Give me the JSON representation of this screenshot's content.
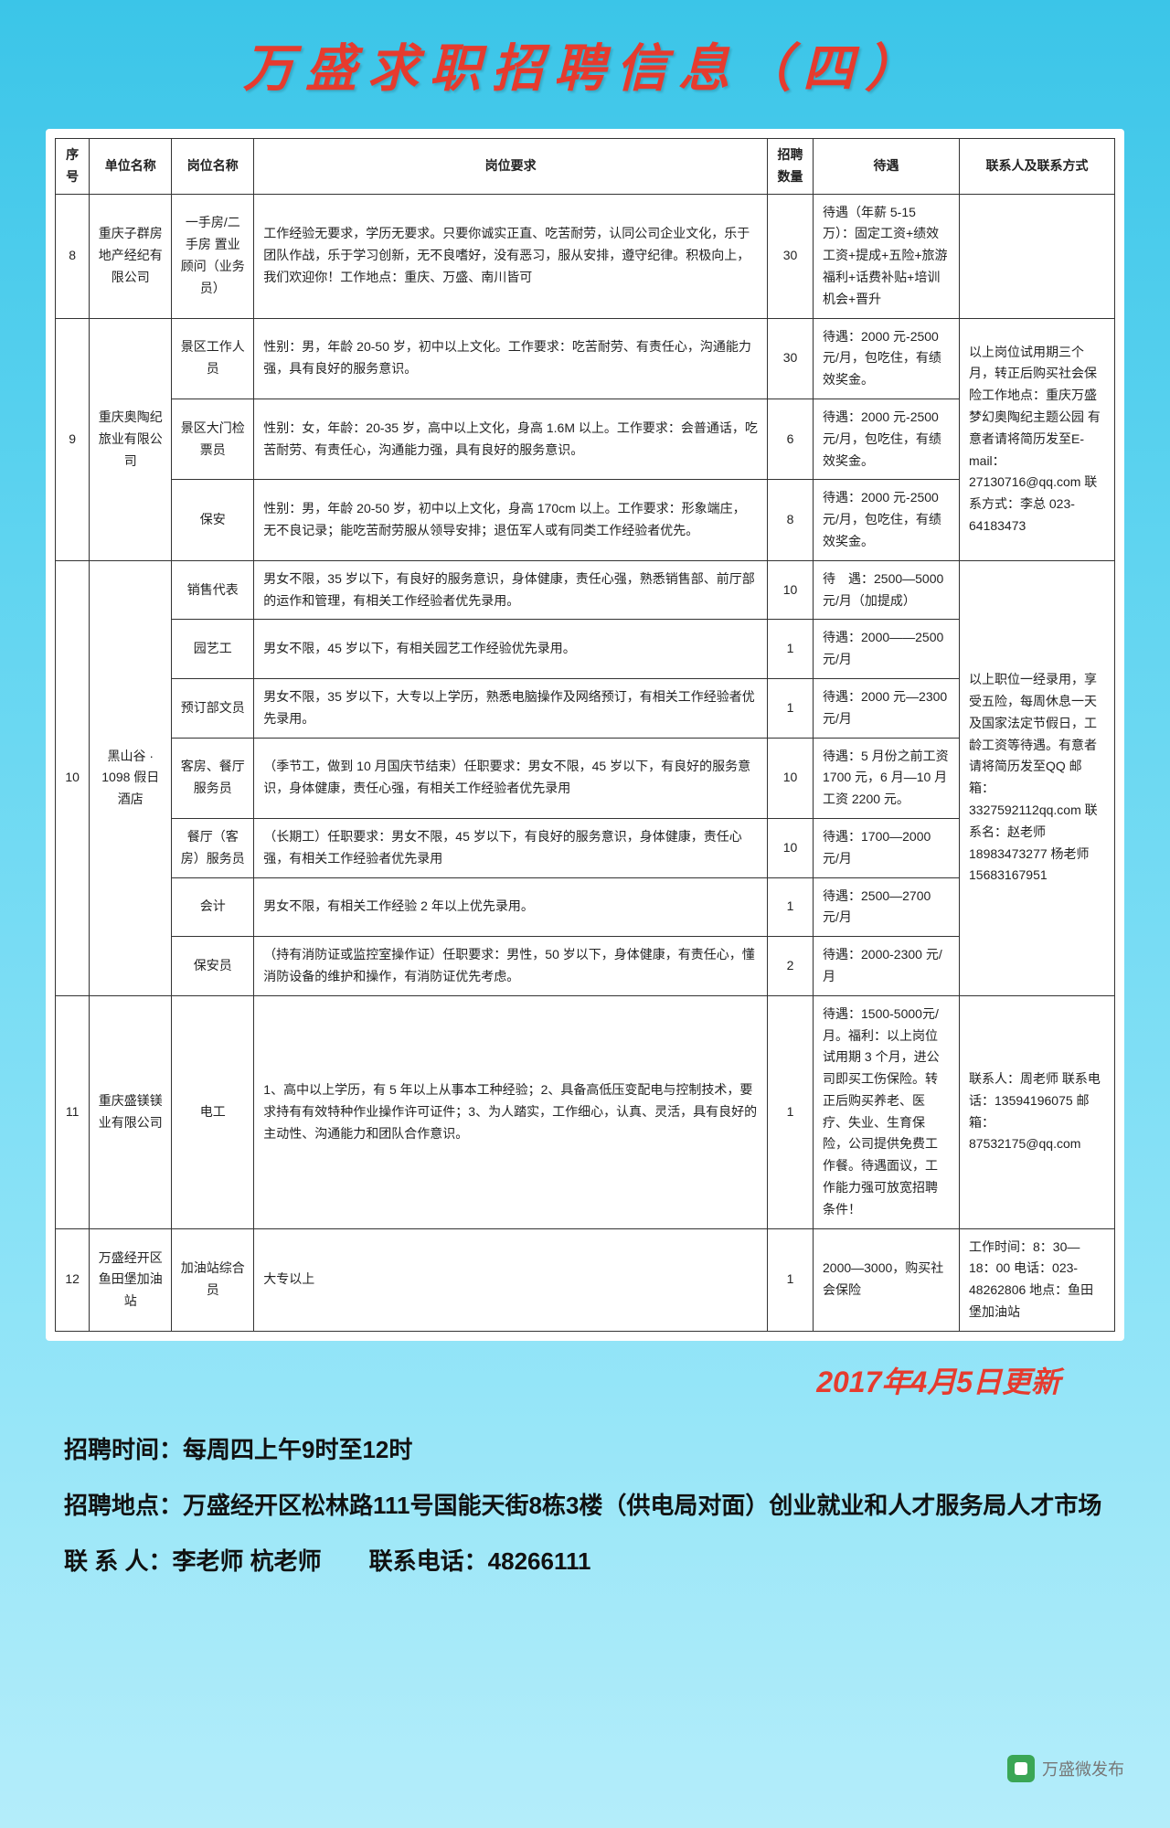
{
  "title": "万盛求职招聘信息（四）",
  "columns": [
    "序号",
    "单位名称",
    "岗位名称",
    "岗位要求",
    "招聘数量",
    "待遇",
    "联系人及联系方式"
  ],
  "rows": [
    {
      "seq": "8",
      "company": "重庆子群房地产经纪有限公司",
      "positions": [
        {
          "name": "一手房/二手房 置业顾问（业务员）",
          "req": "工作经验无要求，学历无要求。只要你诚实正直、吃苦耐劳，认同公司企业文化，乐于团队作战，乐于学习创新，无不良嗜好，没有恶习，服从安排，遵守纪律。积极向上，我们欢迎你！工作地点：重庆、万盛、南川皆可",
          "count": "30",
          "treat": "待遇（年薪 5-15 万）：固定工资+绩效工资+提成+五险+旅游福利+话费补贴+培训机会+晋升"
        }
      ],
      "contact": ""
    },
    {
      "seq": "9",
      "company": "重庆奥陶纪旅业有限公司",
      "positions": [
        {
          "name": "景区工作人员",
          "req": "性别：男，年龄 20-50 岁，初中以上文化。工作要求：吃苦耐劳、有责任心，沟通能力强，具有良好的服务意识。",
          "count": "30",
          "treat": "待遇：2000 元-2500元/月，包吃住，有绩效奖金。"
        },
        {
          "name": "景区大门检票员",
          "req": "性别：女，年龄：20-35 岁，高中以上文化，身高 1.6M 以上。工作要求：会普通话，吃苦耐劳、有责任心，沟通能力强，具有良好的服务意识。",
          "count": "6",
          "treat": "待遇：2000 元-2500元/月，包吃住，有绩效奖金。"
        },
        {
          "name": "保安",
          "req": "性别：男，年龄 20-50 岁，初中以上文化，身高 170cm 以上。工作要求：形象端庄，无不良记录；能吃苦耐劳服从领导安排；退伍军人或有同类工作经验者优先。",
          "count": "8",
          "treat": "待遇：2000 元-2500元/月，包吃住，有绩效奖金。"
        }
      ],
      "contact": "以上岗位试用期三个月，转正后购买社会保险工作地点：重庆万盛梦幻奥陶纪主题公园 有意者请将简历发至E-mail：27130716@qq.com 联系方式：李总 023-64183473"
    },
    {
      "seq": "10",
      "company": "黑山谷 · 1098 假日酒店",
      "positions": [
        {
          "name": "销售代表",
          "req": "男女不限，35 岁以下，有良好的服务意识，身体健康，责任心强，熟悉销售部、前厅部的运作和管理，有相关工作经验者优先录用。",
          "count": "10",
          "treat": "待　遇：2500—5000元/月（加提成）"
        },
        {
          "name": "园艺工",
          "req": "男女不限，45 岁以下，有相关园艺工作经验优先录用。",
          "count": "1",
          "treat": "待遇：2000——2500元/月"
        },
        {
          "name": "预订部文员",
          "req": "男女不限，35 岁以下，大专以上学历，熟悉电脑操作及网络预订，有相关工作经验者优先录用。",
          "count": "1",
          "treat": "待遇：2000 元—2300元/月"
        },
        {
          "name": "客房、餐厅服务员",
          "req": "（季节工，做到 10 月国庆节结束）任职要求：男女不限，45 岁以下，有良好的服务意识，身体健康，责任心强，有相关工作经验者优先录用",
          "count": "10",
          "treat": "待遇：5 月份之前工资 1700 元，6 月—10 月工资 2200 元。"
        },
        {
          "name": "餐厅（客房）服务员",
          "req": "（长期工）任职要求：男女不限，45 岁以下，有良好的服务意识，身体健康，责任心强，有相关工作经验者优先录用",
          "count": "10",
          "treat": "待遇：1700—2000 元/月"
        },
        {
          "name": "会计",
          "req": "男女不限，有相关工作经验 2 年以上优先录用。",
          "count": "1",
          "treat": "待遇：2500—2700 元/月"
        },
        {
          "name": "保安员",
          "req": "（持有消防证或监控室操作证）任职要求：男性，50 岁以下，身体健康，有责任心，懂消防设备的维护和操作，有消防证优先考虑。",
          "count": "2",
          "treat": "待遇：2000-2300 元/月"
        }
      ],
      "contact": "以上职位一经录用，享受五险，每周休息一天及国家法定节假日，工龄工资等待遇。有意者请将简历发至QQ 邮箱：3327592112qq.com 联系名：赵老师 18983473277 杨老师 15683167951"
    },
    {
      "seq": "11",
      "company": "重庆盛镁镁业有限公司",
      "positions": [
        {
          "name": "电工",
          "req": "1、高中以上学历，有 5 年以上从事本工种经验；2、具备高低压变配电与控制技术，要求持有有效特种作业操作许可证件；3、为人踏实，工作细心，认真、灵活，具有良好的主动性、沟通能力和团队合作意识。",
          "count": "1",
          "treat": "待遇：1500-5000元/月。福利：以上岗位试用期 3 个月，进公司即买工伤保险。转正后购买养老、医疗、失业、生育保险，公司提供免费工作餐。待遇面议，工作能力强可放宽招聘条件！"
        }
      ],
      "contact": "联系人：周老师 联系电话：13594196075 邮箱：87532175@qq.com"
    },
    {
      "seq": "12",
      "company": "万盛经开区鱼田堡加油站",
      "positions": [
        {
          "name": "加油站综合员",
          "req": "大专以上",
          "count": "1",
          "treat": "2000—3000，购买社会保险"
        }
      ],
      "contact": "工作时间：8：30—18：00 电话：023-48262806 地点：鱼田堡加油站"
    }
  ],
  "update_date": "2017年4月5日更新",
  "footer": {
    "time": "招聘时间：每周四上午9时至12时",
    "place": "招聘地点：万盛经开区松林路111号国能天街8栋3楼（供电局对面）创业就业和人才服务局人才市场",
    "contact": "联 系 人：李老师 杭老师　　联系电话：48266111"
  },
  "watermark": "万盛微发布"
}
